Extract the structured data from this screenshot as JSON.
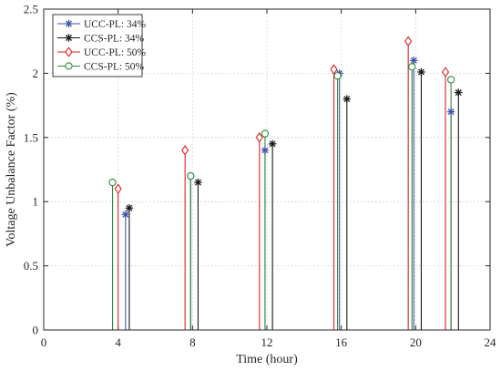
{
  "chart_data": {
    "type": "stem",
    "xlabel": "Time (hour)",
    "ylabel": "Voltage Unbalance Factor (%)",
    "xlim": [
      0,
      24
    ],
    "ylim": [
      0,
      2.5
    ],
    "xticks": [
      "0",
      "4",
      "8",
      "12",
      "16",
      "20",
      "24"
    ],
    "yticks": [
      "0",
      "0.5",
      "1",
      "1.5",
      "2",
      "2.5"
    ],
    "grid": true,
    "legend_position": "top-left",
    "series": [
      {
        "name": "UCC-PL: 34%",
        "color": "#3f55a6",
        "marker": "asterisk",
        "x": [
          4.4,
          7.9,
          11.9,
          15.9,
          19.9,
          21.9
        ],
        "y": [
          0.9,
          1.2,
          1.4,
          2.0,
          2.1,
          1.7
        ]
      },
      {
        "name": "CCS-PL: 34%",
        "color": "#1a1a1a",
        "marker": "asterisk",
        "x": [
          4.6,
          8.3,
          12.3,
          16.3,
          20.3,
          22.3
        ],
        "y": [
          0.95,
          1.15,
          1.45,
          1.8,
          2.01,
          1.85
        ]
      },
      {
        "name": "UCC-PL: 50%",
        "color": "#e02020",
        "marker": "diamond",
        "x": [
          4.0,
          7.6,
          11.6,
          15.6,
          19.6,
          21.6
        ],
        "y": [
          1.1,
          1.4,
          1.5,
          2.03,
          2.25,
          2.01
        ]
      },
      {
        "name": "CCS-PL: 50%",
        "color": "#2e8b3a",
        "marker": "circle",
        "x": [
          3.7,
          7.9,
          11.9,
          15.8,
          19.8,
          21.9
        ],
        "y": [
          1.15,
          1.2,
          1.53,
          1.98,
          2.05,
          1.95
        ]
      }
    ]
  }
}
